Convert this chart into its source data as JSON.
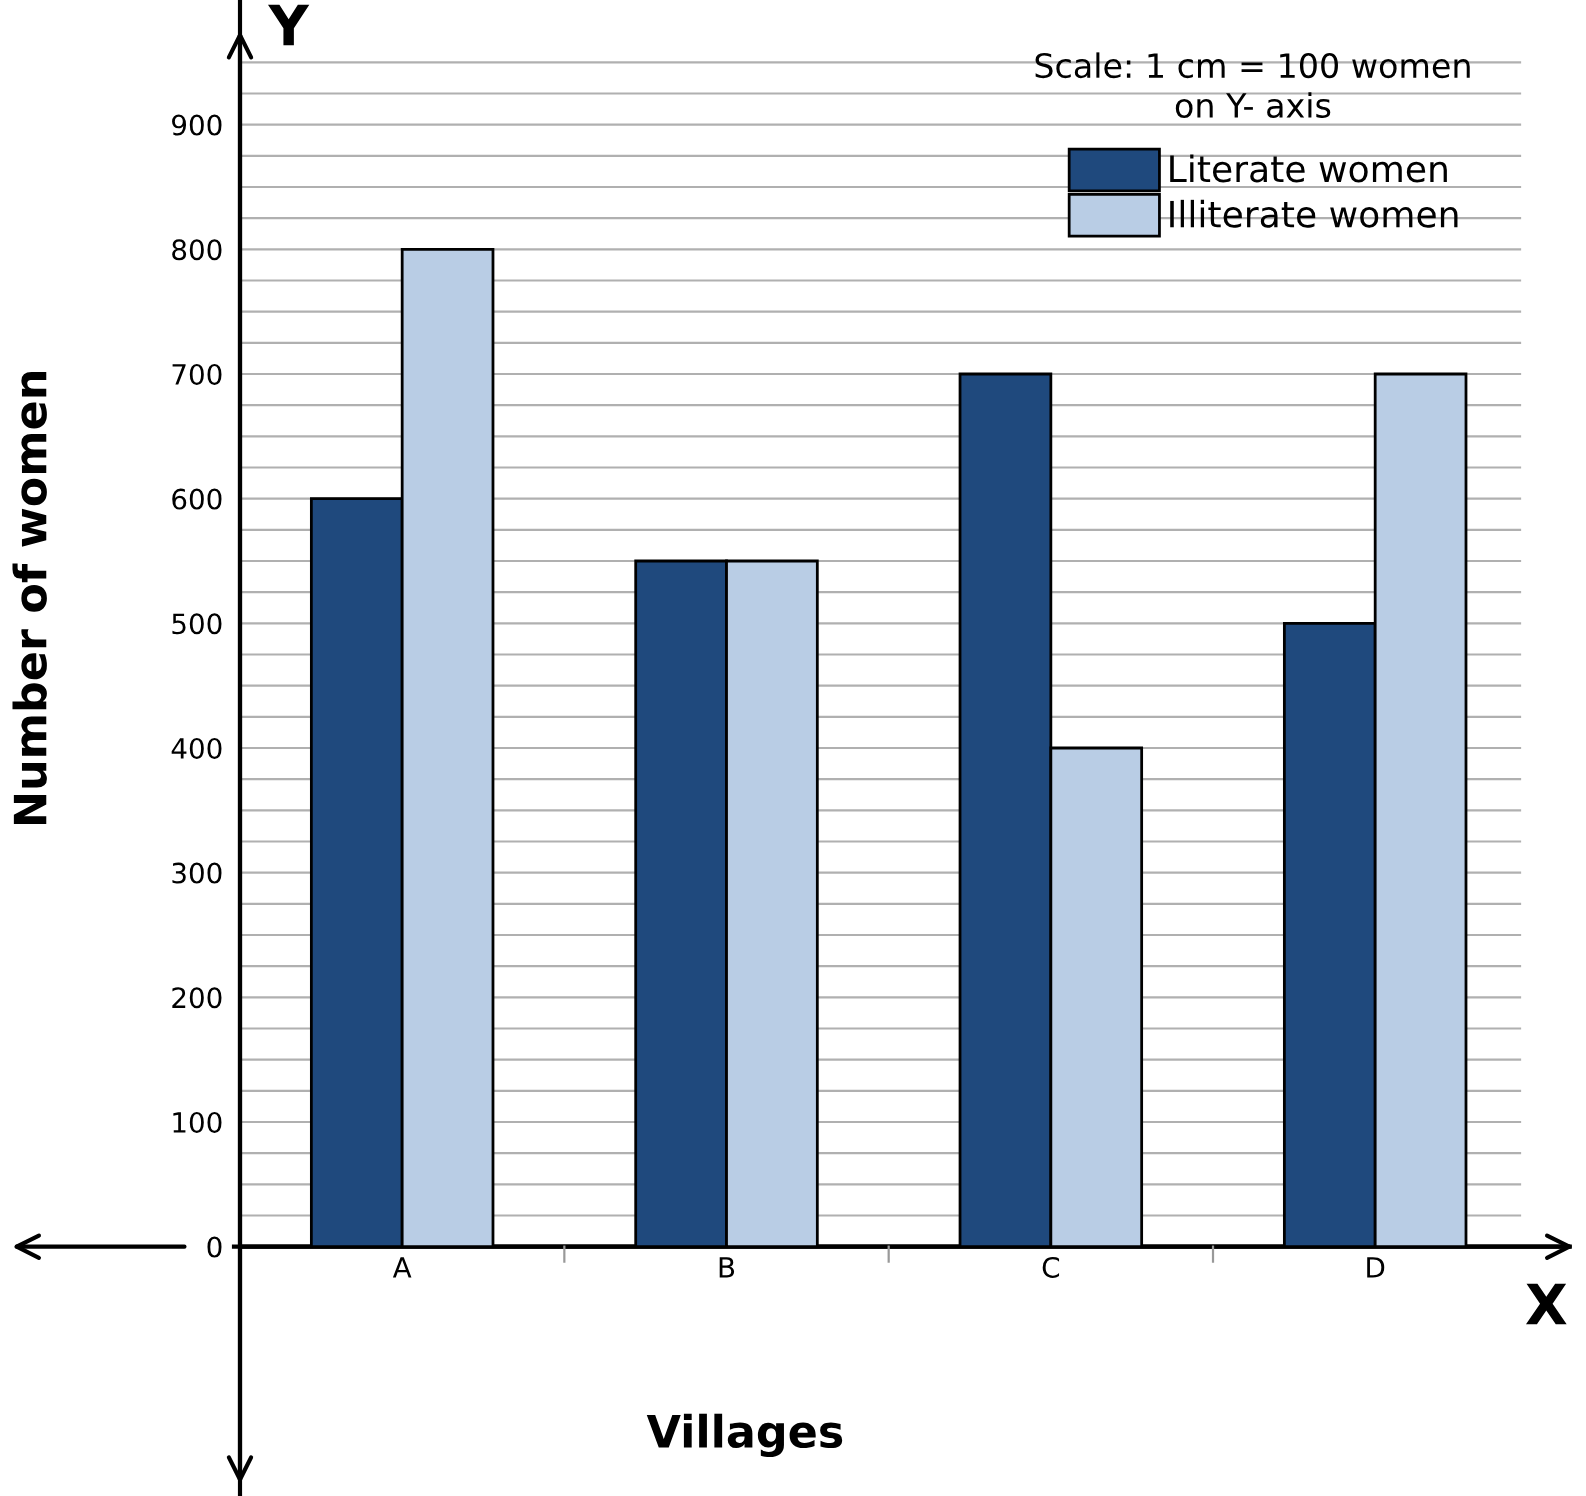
{
  "chart_data": {
    "type": "bar",
    "xlabel": "Villages",
    "ylabel": "Number of women",
    "categories": [
      "A",
      "B",
      "C",
      "D"
    ],
    "series": [
      {
        "name": "Literate women",
        "color": "#1f497d",
        "values": [
          600,
          550,
          700,
          500
        ]
      },
      {
        "name": "Illiterate women",
        "color": "#b9cde5",
        "values": [
          800,
          550,
          400,
          700
        ]
      }
    ],
    "ylim": [
      -200,
      1000
    ],
    "yticks": [
      0,
      {
        "value": 25,
        "label": null
      },
      {
        "value": 50,
        "label": null
      },
      {
        "value": 75,
        "label": null
      },
      100,
      {
        "value": 125,
        "label": null
      },
      {
        "value": 150,
        "label": null
      },
      {
        "value": 175,
        "label": null
      },
      200,
      {
        "value": 225,
        "label": null
      },
      {
        "value": 250,
        "label": null
      },
      {
        "value": 275,
        "label": null
      },
      300,
      {
        "value": 325,
        "label": null
      },
      {
        "value": 350,
        "label": null
      },
      {
        "value": 375,
        "label": null
      },
      400,
      {
        "value": 425,
        "label": null
      },
      {
        "value": 450,
        "label": null
      },
      {
        "value": 475,
        "label": null
      },
      500,
      {
        "value": 525,
        "label": null
      },
      {
        "value": 550,
        "label": null
      },
      {
        "value": 575,
        "label": null
      },
      600,
      {
        "value": 625,
        "label": null
      },
      {
        "value": 650,
        "label": null
      },
      {
        "value": 675,
        "label": null
      },
      700,
      {
        "value": 725,
        "label": null
      },
      {
        "value": 750,
        "label": null
      },
      {
        "value": 775,
        "label": null
      },
      800,
      {
        "value": 825,
        "label": null
      },
      {
        "value": 850,
        "label": null
      },
      {
        "value": 875,
        "label": null
      },
      900,
      {
        "value": 925,
        "label": null
      },
      {
        "value": 950,
        "label": null
      }
    ],
    "grid": "y",
    "legend": "top right",
    "annotations": [
      "X",
      "Y",
      "Scale: 1 cm = 100 women\non Y- axis"
    ]
  }
}
